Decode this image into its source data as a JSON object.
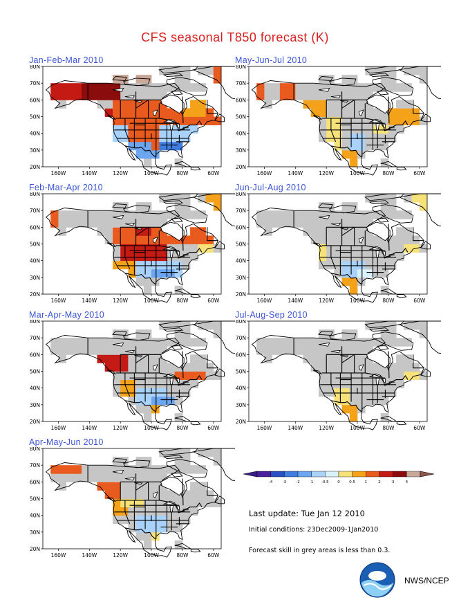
{
  "title": "CFS seasonal T850 forecast (K)",
  "panels": [
    {
      "id": "jfm",
      "title": "Jan-Feb-Mar 2010"
    },
    {
      "id": "mjj",
      "title": "May-Jun-Jul 2010"
    },
    {
      "id": "fma",
      "title": "Feb-Mar-Apr 2010"
    },
    {
      "id": "jja",
      "title": "Jun-Jul-Aug 2010"
    },
    {
      "id": "mam",
      "title": "Mar-Apr-May 2010"
    },
    {
      "id": "jas",
      "title": "Jul-Aug-Sep 2010"
    },
    {
      "id": "amj",
      "title": "Apr-May-Jun 2010"
    }
  ],
  "axes": {
    "lat_ticks": [
      "80N",
      "70N",
      "60N",
      "50N",
      "40N",
      "30N",
      "20N"
    ],
    "lon_ticks": [
      "160W",
      "140W",
      "120W",
      "100W",
      "80W",
      "60W"
    ]
  },
  "legend": {
    "labels": [
      "-4",
      "-3",
      "-2",
      "-1",
      "-0.5",
      "0",
      "0.5",
      "1",
      "2",
      "3",
      "4"
    ],
    "colors": [
      "#4a1f9c",
      "#2a4fc0",
      "#3f7ee0",
      "#6ca6f0",
      "#a8d2fa",
      "#d8f1fb",
      "#f7e27a",
      "#f4a21a",
      "#e85a1e",
      "#c41a14",
      "#8a0c0c",
      "#c9a89a"
    ],
    "end_colors": {
      "left": "#3a1f86",
      "right": "#8a5a4a"
    }
  },
  "last_update": "Last update: Tue Jan 12 2010",
  "initial_conditions": "Initial conditions: 23Dec2009-1Jan2010",
  "skill_note": "Forecast skill in grey areas is less than 0.3.",
  "org_label": "NWS/NCEP",
  "logo": {
    "icon": "noaa-logo"
  }
}
